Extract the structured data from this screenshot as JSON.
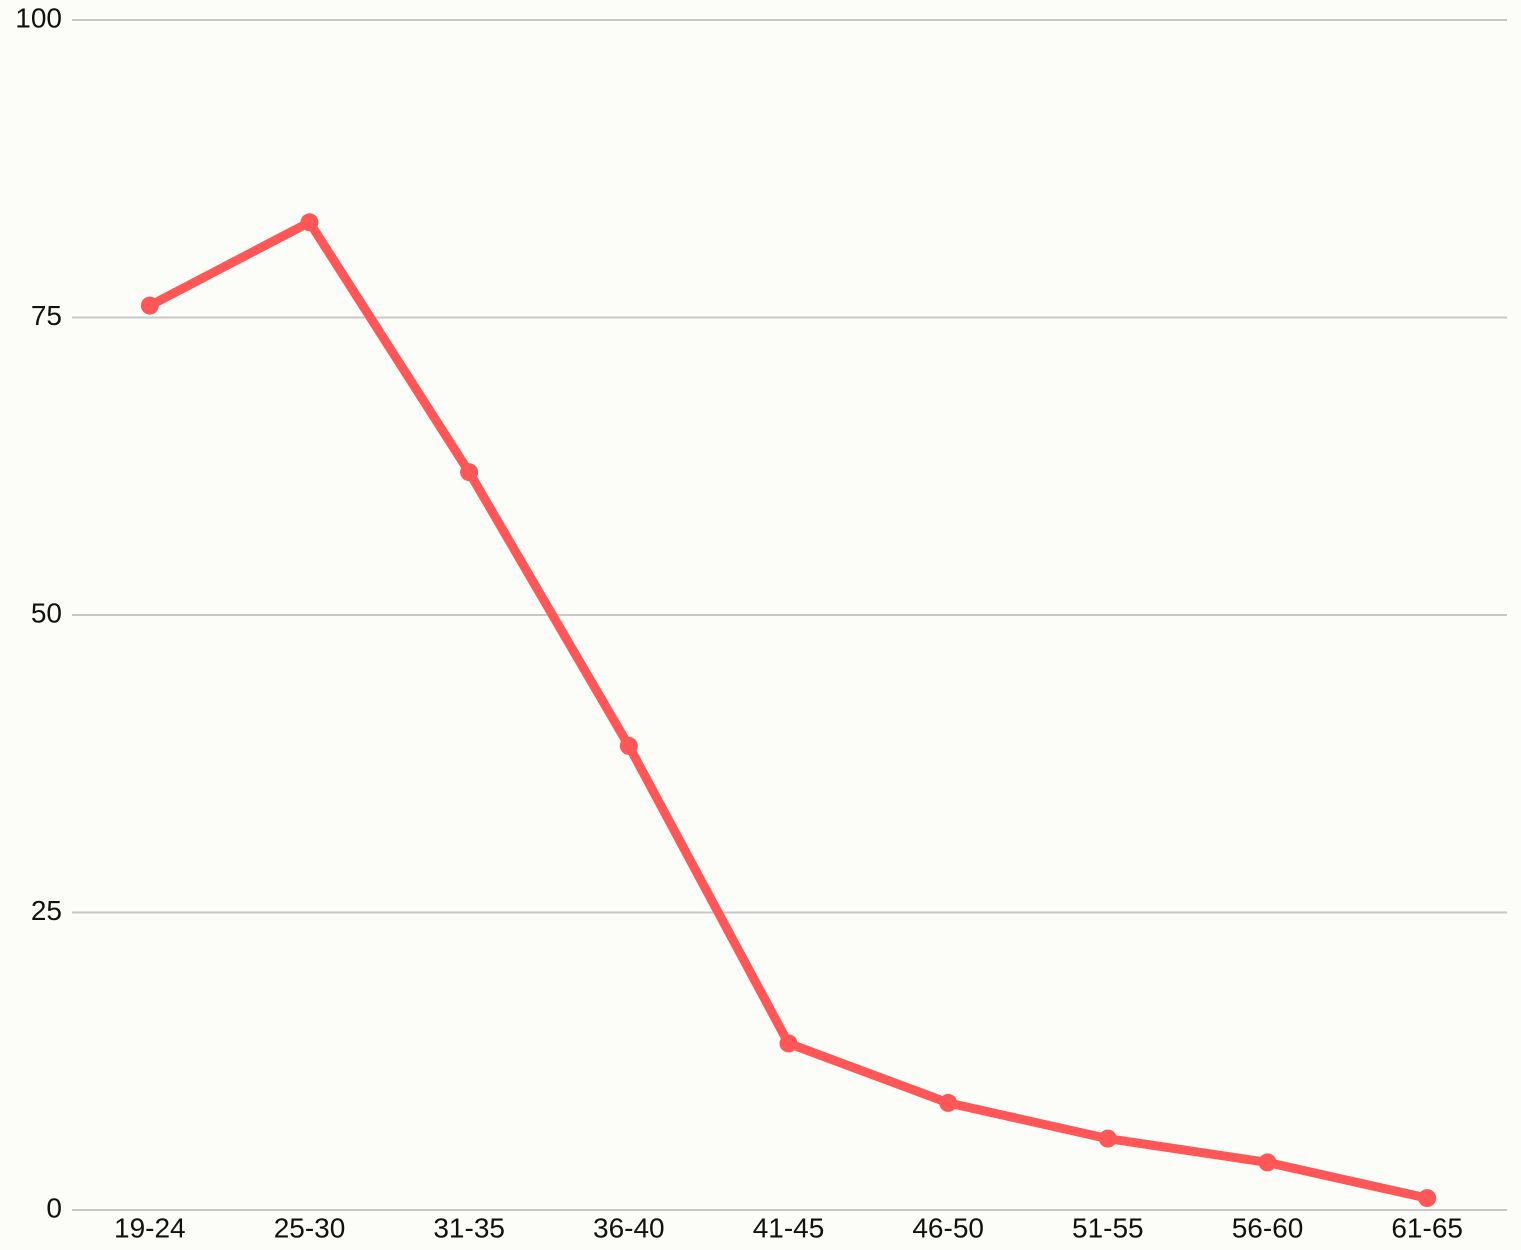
{
  "chart_data": {
    "type": "line",
    "categories": [
      "19-24",
      "25-30",
      "31-35",
      "36-40",
      "41-45",
      "46-50",
      "51-55",
      "56-60",
      "61-65"
    ],
    "values": [
      76,
      83,
      62,
      39,
      14,
      9,
      6,
      4,
      1
    ],
    "color": "#ff5757",
    "ylim": [
      0,
      100
    ],
    "yticks": [
      0,
      25,
      50,
      75,
      100
    ],
    "grid": true
  }
}
